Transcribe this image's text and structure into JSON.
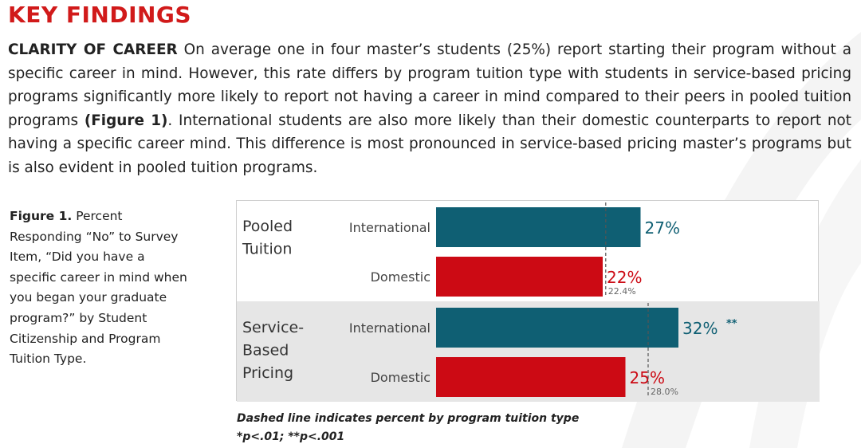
{
  "heading": "KEY FINDINGS",
  "paragraph": {
    "lead": "CLARITY OF CAREER",
    "text1": " On average one in four master’s students (25%) report starting their program without a specific career in mind. However, this rate differs by program tuition type with students in service-based pricing programs significantly more likely to report not having a career in mind compared to their peers in pooled tuition programs ",
    "figref": "(Figure 1)",
    "text2": ". International students are also more likely than their domestic counterparts to report not having a specific career mind. This difference is most pronounced in service-based pricing master’s programs but is also evident in pooled tuition programs."
  },
  "caption": {
    "label": "Figure 1.",
    "text": " Percent Responding “No” to Survey Item, “Did you have a specific career in mind when you began your graduate program?” by Student Citizenship and Program Tuition Type."
  },
  "footnote": {
    "line1": "Dashed line indicates percent by program tuition type",
    "line2": "*p<.01; **p<.001"
  },
  "colors": {
    "international": "#0f5f73",
    "domestic": "#cc0a14",
    "group_shade": "#e6e6e6",
    "heading": "#d11a1a"
  },
  "chart_data": {
    "type": "bar",
    "orientation": "horizontal",
    "xlim": [
      0,
      45
    ],
    "groups": [
      {
        "label": "Pooled Tuition",
        "label_lines": [
          "Pooled",
          "Tuition"
        ],
        "reference": 22.4,
        "reference_label": "22.4%",
        "bars": [
          {
            "category": "International",
            "value": 27,
            "label": "27%",
            "sig": ""
          },
          {
            "category": "Domestic",
            "value": 22,
            "label": "22%",
            "sig": ""
          }
        ]
      },
      {
        "label": "Service-Based Pricing",
        "label_lines": [
          "Service-",
          "Based",
          "Pricing"
        ],
        "reference": 28.0,
        "reference_label": "28.0%",
        "bars": [
          {
            "category": "International",
            "value": 32,
            "label": "32%",
            "sig": "**"
          },
          {
            "category": "Domestic",
            "value": 25,
            "label": "25%",
            "sig": ""
          }
        ]
      }
    ]
  }
}
